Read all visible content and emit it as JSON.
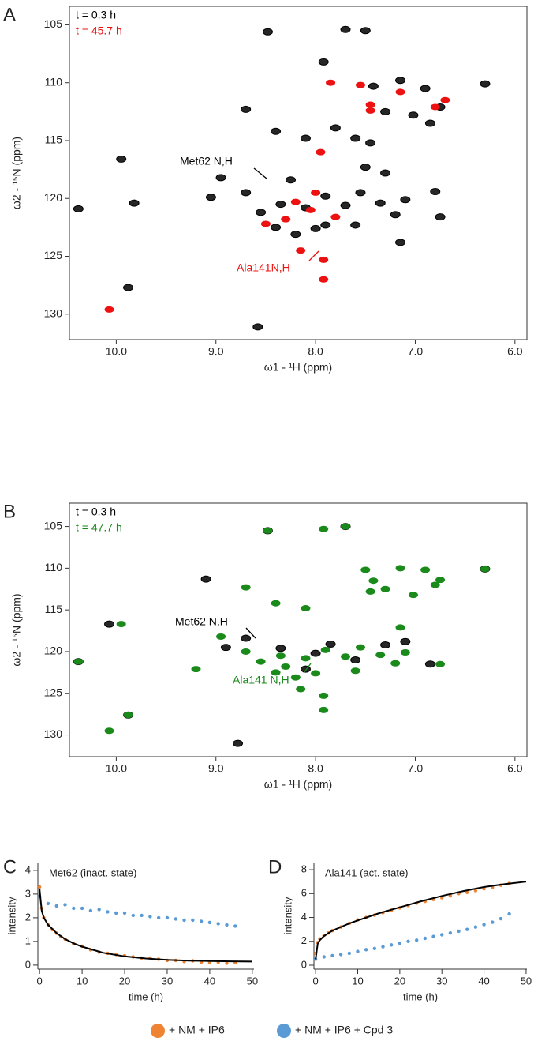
{
  "chart_data": [
    {
      "type": "scatter",
      "panel_label": "A",
      "xlabel": "ω1 - ¹H (ppm)",
      "ylabel": "ω2 - ¹⁵N (ppm)",
      "xlim": [
        10.47,
        5.88
      ],
      "ylim": [
        132.2,
        103.4
      ],
      "xticks": [
        {
          "value": 10,
          "label": "10.0"
        },
        {
          "value": 9,
          "label": "9.0"
        },
        {
          "value": 8,
          "label": "8.0"
        },
        {
          "value": 7,
          "label": "7.0"
        },
        {
          "value": 6,
          "label": "6.0"
        }
      ],
      "yticks": [
        105,
        110,
        115,
        120,
        125,
        130
      ],
      "legend": "upper left",
      "series": [
        {
          "name": "t = 0.3 h",
          "color": "#000000",
          "x": [
            10.38,
            9.95,
            9.82,
            9.88,
            8.58,
            8.48,
            7.92,
            7.7,
            7.5,
            7.42,
            7.15,
            6.9,
            6.3,
            8.7,
            8.4,
            8.1,
            7.3,
            7.02,
            6.75,
            6.85,
            7.45,
            7.6,
            7.8,
            8.95,
            9.05,
            8.7,
            8.55,
            8.35,
            8.1,
            7.9,
            7.7,
            7.55,
            7.35,
            7.1,
            8.4,
            8.2,
            8.0,
            7.6,
            7.2,
            6.8,
            6.75,
            7.15,
            7.3,
            7.5,
            8.25,
            7.9
          ],
          "values": [
            120.9,
            116.6,
            120.4,
            127.7,
            131.1,
            105.6,
            108.2,
            105.4,
            105.5,
            110.3,
            109.8,
            110.5,
            110.1,
            112.3,
            114.2,
            114.8,
            112.5,
            112.8,
            112.1,
            113.5,
            115.2,
            114.8,
            113.9,
            118.2,
            119.9,
            119.5,
            121.2,
            120.5,
            120.8,
            119.8,
            120.6,
            119.5,
            120.4,
            120.1,
            122.5,
            123.1,
            122.6,
            122.3,
            121.4,
            119.4,
            121.6,
            123.8,
            117.8,
            117.3,
            118.4,
            122.3
          ]
        },
        {
          "name": "t = 45.7 h",
          "color": "#ee1111",
          "x": [
            10.07,
            7.92,
            7.92,
            8.15,
            8.3,
            8.5,
            8.05,
            7.8,
            8.2,
            8.0,
            7.45,
            7.45,
            6.7,
            6.8,
            7.55,
            7.85,
            7.15,
            7.95
          ],
          "values": [
            129.6,
            127.0,
            125.3,
            124.5,
            121.8,
            122.2,
            121.0,
            121.6,
            120.3,
            119.5,
            112.4,
            111.9,
            111.5,
            112.1,
            110.2,
            110.0,
            110.8,
            116.0
          ]
        }
      ],
      "annotations": [
        {
          "text": "Met62 N,H",
          "color": "#000000"
        },
        {
          "text": "Ala141N,H",
          "color": "#ee1111"
        }
      ]
    },
    {
      "type": "scatter",
      "panel_label": "B",
      "xlabel": "ω1 - ¹H (ppm)",
      "ylabel": "ω2 - ¹⁵N (ppm)",
      "xlim": [
        10.47,
        5.88
      ],
      "ylim": [
        132.6,
        102.2
      ],
      "xticks": [
        {
          "value": 10,
          "label": "10.0"
        },
        {
          "value": 9,
          "label": "9.0"
        },
        {
          "value": 8,
          "label": "8.0"
        },
        {
          "value": 7,
          "label": "7.0"
        },
        {
          "value": 6,
          "label": "6.0"
        }
      ],
      "yticks": [
        105,
        110,
        115,
        120,
        125,
        130
      ],
      "legend": "upper left",
      "series": [
        {
          "name": "t = 0.3 h",
          "color": "#000000",
          "x": [
            10.38,
            10.07,
            9.88,
            8.78,
            8.48,
            7.7,
            9.1,
            8.7,
            8.35,
            8.0,
            7.6,
            7.3,
            7.1,
            6.85,
            6.3,
            8.9,
            8.1,
            7.85
          ],
          "values": [
            121.2,
            116.7,
            127.6,
            131.0,
            105.5,
            105.0,
            111.3,
            118.4,
            119.6,
            120.2,
            121.0,
            119.2,
            118.8,
            121.5,
            110.1,
            119.5,
            122.1,
            119.1
          ]
        },
        {
          "name": "t = 47.7 h",
          "color": "#1a8a1a",
          "x": [
            10.38,
            10.07,
            9.95,
            9.88,
            8.48,
            7.92,
            7.7,
            7.5,
            7.42,
            7.15,
            6.9,
            6.75,
            6.3,
            8.7,
            8.4,
            8.1,
            7.45,
            7.3,
            7.02,
            6.8,
            9.2,
            8.95,
            8.7,
            8.55,
            8.35,
            8.1,
            7.9,
            7.7,
            7.55,
            7.35,
            7.1,
            8.4,
            8.2,
            8.0,
            7.6,
            7.2,
            6.75,
            7.15,
            7.92,
            7.92,
            8.15,
            8.3
          ],
          "values": [
            121.2,
            129.5,
            116.7,
            127.6,
            105.5,
            105.3,
            105.0,
            110.2,
            111.5,
            110.0,
            110.2,
            111.4,
            110.1,
            112.3,
            114.2,
            114.8,
            112.8,
            112.5,
            113.2,
            112.0,
            122.1,
            118.2,
            120.0,
            121.2,
            120.5,
            120.8,
            119.8,
            120.6,
            119.5,
            120.4,
            120.1,
            122.5,
            123.1,
            122.6,
            122.3,
            121.4,
            121.5,
            117.1,
            125.3,
            127.0,
            124.5,
            121.8
          ]
        }
      ],
      "annotations": [
        {
          "text": "Met62 N,H",
          "color": "#000000"
        },
        {
          "text": "Ala141 N,H",
          "color": "#1a8a1a"
        }
      ]
    },
    {
      "type": "scatter",
      "panel_label": "C",
      "title": "Met62 (inact. state)",
      "xlabel": "time (h)",
      "ylabel": "intensity",
      "xlim": [
        -0.4,
        50.4
      ],
      "ylim": [
        -0.17,
        4.33
      ],
      "xticks": [
        0,
        10,
        20,
        30,
        40,
        50
      ],
      "yticks": [
        0,
        1,
        2,
        3,
        4
      ],
      "legend": "bottom",
      "series": [
        {
          "name": "+ NM + IP6",
          "color": "#ee8433",
          "x": [
            0,
            0.5,
            1,
            2,
            3,
            4,
            5,
            6,
            8,
            10,
            12,
            14,
            16,
            18,
            20,
            22,
            24,
            26,
            28,
            30,
            32,
            34,
            36,
            38,
            40,
            42,
            44,
            46
          ],
          "values": [
            3.3,
            2.4,
            2.0,
            1.7,
            1.5,
            1.35,
            1.2,
            1.1,
            0.9,
            0.8,
            0.65,
            0.55,
            0.5,
            0.45,
            0.4,
            0.35,
            0.3,
            0.3,
            0.25,
            0.2,
            0.2,
            0.15,
            0.18,
            0.12,
            0.1,
            0.12,
            0.08,
            0.1
          ]
        },
        {
          "name": "+ NM + IP6 + Cpd 3",
          "color": "#5b9bd5",
          "x": [
            0,
            2,
            4,
            6,
            8,
            10,
            12,
            14,
            16,
            18,
            20,
            22,
            24,
            26,
            28,
            30,
            32,
            34,
            36,
            38,
            40,
            42,
            44,
            46
          ],
          "values": [
            2.9,
            2.6,
            2.5,
            2.55,
            2.4,
            2.4,
            2.3,
            2.35,
            2.25,
            2.2,
            2.2,
            2.1,
            2.1,
            2.05,
            2.0,
            2.0,
            1.95,
            1.9,
            1.9,
            1.85,
            1.8,
            1.75,
            1.7,
            1.65
          ]
        },
        {
          "type": "line",
          "color": "#000000",
          "x": [
            0,
            0.5,
            1,
            2,
            4,
            6,
            8,
            10,
            15,
            20,
            25,
            30,
            35,
            40,
            45,
            50
          ],
          "values": [
            3.2,
            2.3,
            2.0,
            1.7,
            1.35,
            1.1,
            0.92,
            0.78,
            0.52,
            0.37,
            0.28,
            0.22,
            0.19,
            0.17,
            0.16,
            0.15
          ]
        }
      ]
    },
    {
      "type": "scatter",
      "panel_label": "D",
      "title": "Ala141 (act. state)",
      "xlabel": "time (h)",
      "ylabel": "intensity",
      "xlim": [
        -0.4,
        50.2
      ],
      "ylim": [
        -0.33,
        8.6
      ],
      "xticks": [
        0,
        10,
        20,
        30,
        40,
        50
      ],
      "yticks": [
        0,
        2,
        4,
        6,
        8
      ],
      "series": [
        {
          "color": "#ee8433",
          "x": [
            0,
            0.5,
            1,
            2,
            3,
            4,
            6,
            8,
            10,
            12,
            14,
            16,
            18,
            20,
            22,
            24,
            26,
            28,
            30,
            32,
            34,
            36,
            38,
            40,
            42,
            44,
            46
          ],
          "values": [
            1.0,
            1.9,
            2.2,
            2.5,
            2.7,
            2.9,
            3.2,
            3.5,
            3.8,
            4.0,
            4.2,
            4.4,
            4.6,
            4.8,
            5.0,
            5.2,
            5.35,
            5.5,
            5.65,
            5.8,
            6.0,
            6.1,
            6.25,
            6.4,
            6.5,
            6.7,
            6.85
          ]
        },
        {
          "color": "#5b9bd5",
          "x": [
            0,
            2,
            4,
            6,
            8,
            10,
            12,
            14,
            16,
            18,
            20,
            22,
            24,
            26,
            28,
            30,
            32,
            34,
            36,
            38,
            40,
            42,
            44,
            46
          ],
          "values": [
            0.5,
            0.7,
            0.8,
            0.9,
            1.0,
            1.15,
            1.3,
            1.4,
            1.55,
            1.7,
            1.85,
            2.0,
            2.1,
            2.25,
            2.4,
            2.55,
            2.7,
            2.85,
            3.0,
            3.2,
            3.4,
            3.6,
            3.9,
            4.3
          ]
        },
        {
          "type": "line",
          "color": "#000000",
          "x": [
            0,
            0.5,
            1,
            2,
            4,
            6,
            8,
            10,
            15,
            20,
            25,
            30,
            35,
            40,
            45,
            50
          ],
          "values": [
            0.5,
            1.8,
            2.1,
            2.45,
            2.9,
            3.2,
            3.5,
            3.75,
            4.35,
            4.85,
            5.35,
            5.8,
            6.2,
            6.55,
            6.8,
            7.0
          ]
        }
      ]
    }
  ]
}
